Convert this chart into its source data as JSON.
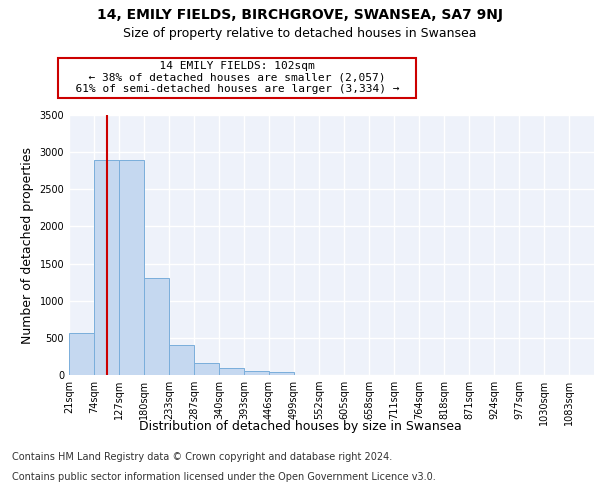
{
  "title": "14, EMILY FIELDS, BIRCHGROVE, SWANSEA, SA7 9NJ",
  "subtitle": "Size of property relative to detached houses in Swansea",
  "xlabel": "Distribution of detached houses by size in Swansea",
  "ylabel": "Number of detached properties",
  "footer_line1": "Contains HM Land Registry data © Crown copyright and database right 2024.",
  "footer_line2": "Contains public sector information licensed under the Open Government Licence v3.0.",
  "bin_labels": [
    "21sqm",
    "74sqm",
    "127sqm",
    "180sqm",
    "233sqm",
    "287sqm",
    "340sqm",
    "393sqm",
    "446sqm",
    "499sqm",
    "552sqm",
    "605sqm",
    "658sqm",
    "711sqm",
    "764sqm",
    "818sqm",
    "871sqm",
    "924sqm",
    "977sqm",
    "1030sqm",
    "1083sqm"
  ],
  "bar_heights": [
    570,
    2900,
    2900,
    1300,
    400,
    155,
    90,
    55,
    40,
    0,
    0,
    0,
    0,
    0,
    0,
    0,
    0,
    0,
    0,
    0,
    0
  ],
  "bar_color": "#c5d8f0",
  "bar_edge_color": "#7aaedb",
  "property_bin_index": 1,
  "vline_color": "#cc0000",
  "annotation_text": "  14 EMILY FIELDS: 102sqm  \n  ← 38% of detached houses are smaller (2,057)  \n  61% of semi-detached houses are larger (3,334) →  ",
  "annotation_box_color": "#ffffff",
  "annotation_box_edge_color": "#cc0000",
  "ylim": [
    0,
    3500
  ],
  "yticks": [
    0,
    500,
    1000,
    1500,
    2000,
    2500,
    3000,
    3500
  ],
  "background_color": "#eef2fa",
  "grid_color": "#ffffff",
  "title_fontsize": 10,
  "subtitle_fontsize": 9,
  "axis_label_fontsize": 9,
  "tick_fontsize": 7,
  "annotation_fontsize": 8,
  "footer_fontsize": 7
}
